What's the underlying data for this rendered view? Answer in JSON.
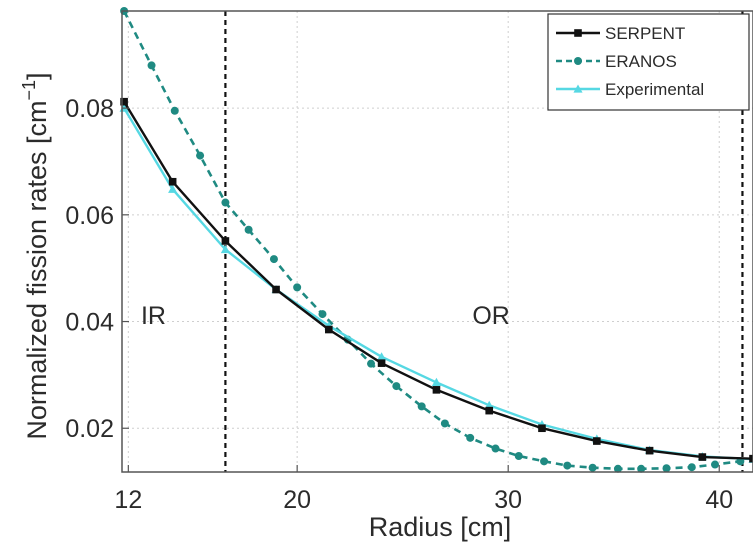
{
  "chart_data": {
    "type": "line",
    "title": "",
    "xlabel": "Radius [cm]",
    "ylabel": "Normalized fission rates [cm",
    "ylabel_superscript": "−1",
    "ylabel_close": "]",
    "xlim": [
      11.7,
      41.6
    ],
    "ylim": [
      0.0118,
      0.0982
    ],
    "xticks": [
      12,
      20,
      30,
      40
    ],
    "xtick_labels": [
      "12",
      "20",
      "30",
      "40"
    ],
    "yticks": [
      0.02,
      0.04,
      0.06,
      0.08
    ],
    "ytick_labels": [
      "0.02",
      "0.04",
      "0.06",
      "0.08"
    ],
    "grid": true,
    "legend": "top-right",
    "vertical_lines": [
      16.6,
      41.1
    ],
    "annotations": [
      {
        "text": "IR",
        "x": 12.6,
        "y": 0.0395
      },
      {
        "text": "OR",
        "x": 28.3,
        "y": 0.0395
      }
    ],
    "series": [
      {
        "name": "SERPENT",
        "color": "#111111",
        "style": "solid",
        "marker": "square",
        "x": [
          11.8,
          14.1,
          16.6,
          19.0,
          21.5,
          24.0,
          26.6,
          29.1,
          31.6,
          34.2,
          36.7,
          39.2,
          41.6
        ],
        "y": [
          0.0812,
          0.0662,
          0.0551,
          0.046,
          0.0385,
          0.0322,
          0.0272,
          0.0233,
          0.02,
          0.0176,
          0.0158,
          0.0146,
          0.0143
        ]
      },
      {
        "name": "ERANOS",
        "color": "#1f8a82",
        "style": "dashed",
        "marker": "circle",
        "x": [
          11.8,
          13.1,
          14.2,
          15.4,
          16.6,
          17.7,
          18.9,
          20.0,
          21.2,
          22.4,
          23.5,
          24.7,
          25.9,
          27.0,
          28.2,
          29.4,
          30.5,
          31.7,
          32.8,
          34.0,
          35.2,
          36.3,
          37.5,
          38.7,
          39.8,
          41.0
        ],
        "y": [
          0.0982,
          0.088,
          0.0795,
          0.0711,
          0.0623,
          0.0572,
          0.0517,
          0.0464,
          0.0414,
          0.0366,
          0.0321,
          0.0279,
          0.0241,
          0.0209,
          0.0182,
          0.0162,
          0.0148,
          0.0138,
          0.013,
          0.0126,
          0.0124,
          0.0124,
          0.0125,
          0.0127,
          0.0132,
          0.0138
        ]
      },
      {
        "name": "Experimental",
        "color": "#56d8e3",
        "style": "solid",
        "marker": "triangle",
        "x": [
          11.8,
          14.1,
          16.6,
          19.0,
          21.5,
          24.0,
          26.6,
          29.1,
          31.6,
          34.2,
          36.7,
          39.2,
          41.6
        ],
        "y": [
          0.08,
          0.0648,
          0.0535,
          0.046,
          0.0392,
          0.0334,
          0.0286,
          0.0243,
          0.0207,
          0.018,
          0.0159,
          0.0147,
          0.0142
        ]
      }
    ]
  }
}
